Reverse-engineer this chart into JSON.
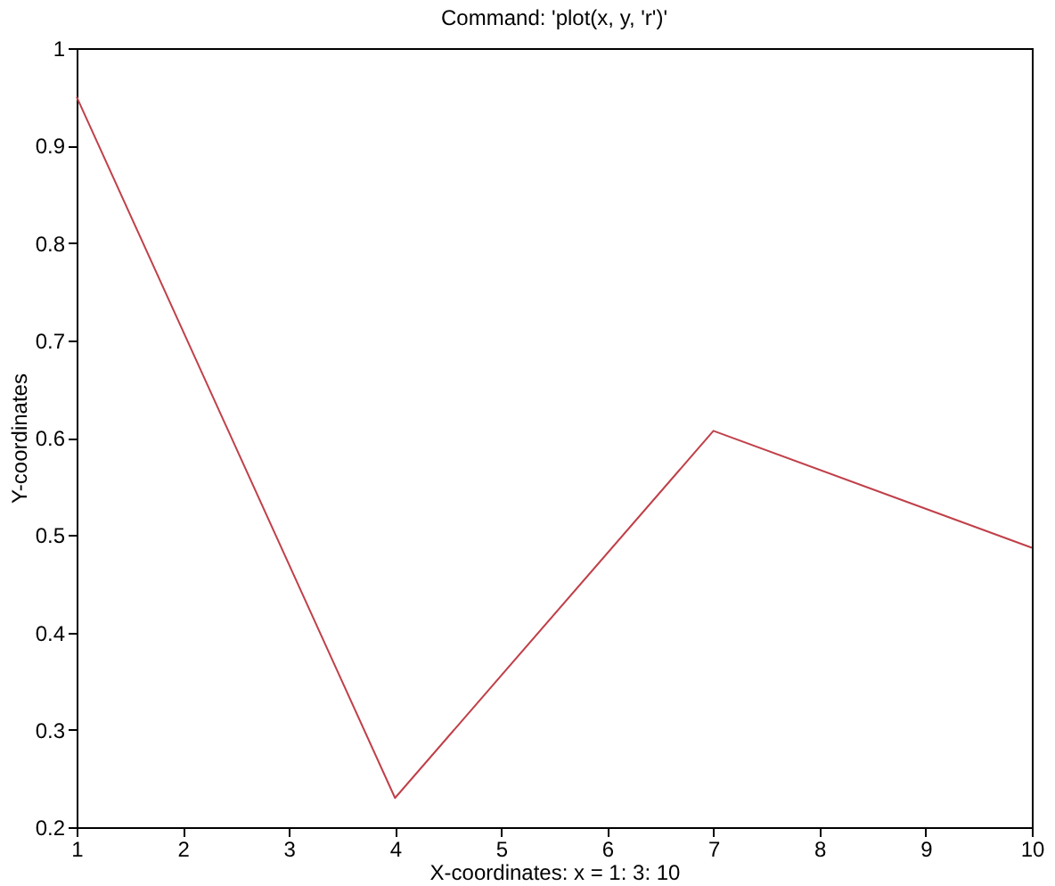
{
  "chart_data": {
    "type": "line",
    "title": "Command: 'plot(x, y, 'r')'",
    "xlabel": "X-coordinates: x = 1: 3: 10",
    "ylabel": "Y-coordinates",
    "x": [
      1,
      4,
      7,
      10
    ],
    "series": [
      {
        "color": "#c0404a",
        "values": [
          0.95,
          0.23,
          0.607,
          0.487
        ]
      }
    ],
    "xlim": [
      1,
      10
    ],
    "xticks": [
      1,
      2,
      3,
      4,
      5,
      6,
      7,
      8,
      9,
      10
    ],
    "ylim": [
      0.2,
      1
    ],
    "yticks": [
      0.2,
      0.3,
      0.4,
      0.5,
      0.6,
      0.7,
      0.8,
      0.9,
      {
        "value": 1,
        "label": "1"
      }
    ],
    "grid": false,
    "marker": "none",
    "line_style": "solid"
  }
}
